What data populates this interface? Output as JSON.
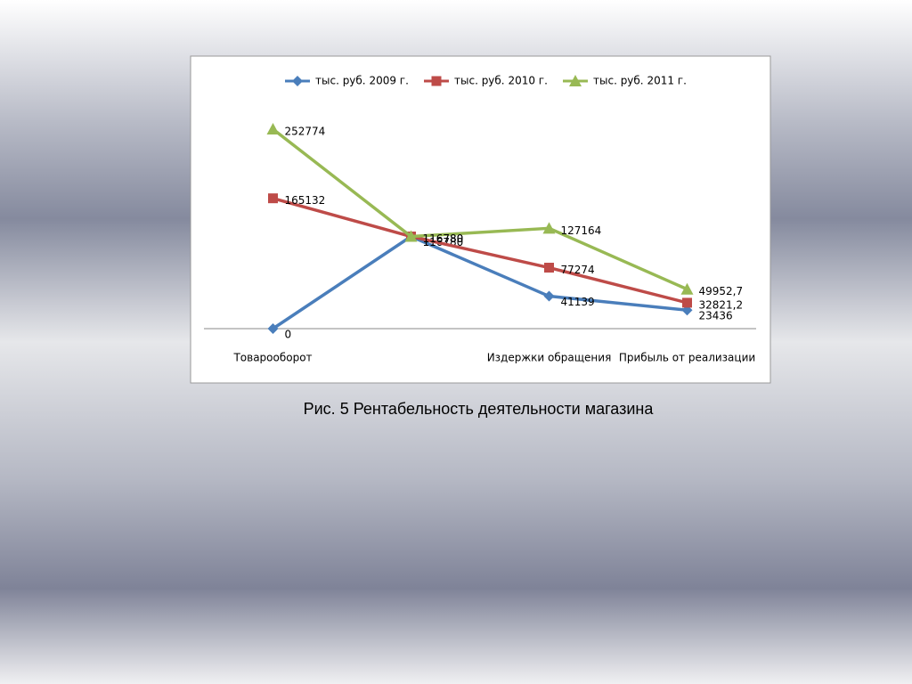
{
  "chart_data": {
    "type": "line",
    "categories": [
      "Товарооборот",
      null,
      "Издержки обращения",
      "Прибыль от реализации"
    ],
    "series": [
      {
        "name": "тыс. руб. 2009 г.",
        "color": "#4a7ebb",
        "values": [
          0,
          116780,
          41139,
          23436
        ]
      },
      {
        "name": "тыс. руб. 2010 г.",
        "color": "#be4b48",
        "values": [
          165132,
          116780,
          77274,
          32821.2
        ],
        "value_labels": [
          "165132",
          "116780",
          "77274",
          "32821,2"
        ]
      },
      {
        "name": "тыс. руб. 2011 г.",
        "color": "#98b954",
        "values": [
          252774,
          116780,
          127164,
          49952.7
        ],
        "value_labels": [
          "252774",
          "116780",
          "127164",
          "49952,7"
        ]
      }
    ],
    "ylim": [
      0,
      260000
    ],
    "legend": "top"
  },
  "caption": "Рис. 5 Рентабельность деятельности магазина"
}
